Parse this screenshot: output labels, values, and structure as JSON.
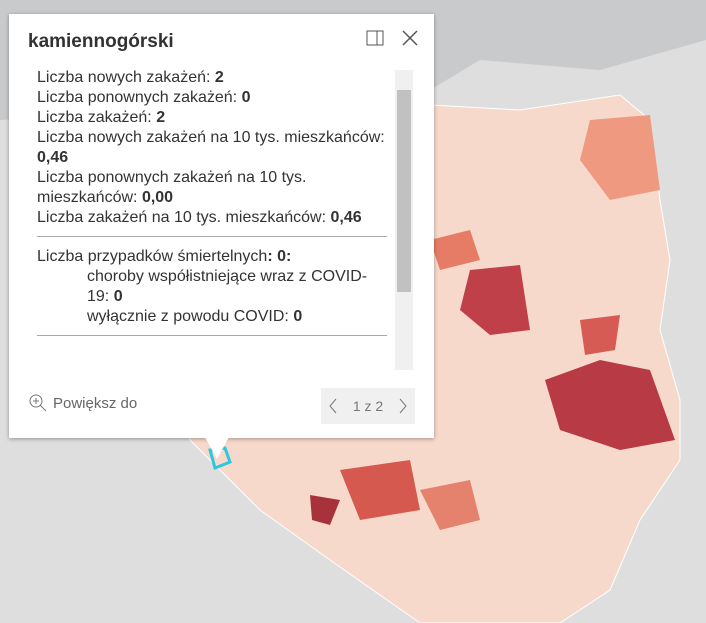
{
  "popup": {
    "title": "kamiennogórski",
    "fields": [
      {
        "label": "Liczba nowych zakażeń:",
        "value": "2"
      },
      {
        "label": "Liczba ponownych zakażeń:",
        "value": "0"
      },
      {
        "label": "Liczba zakażeń:",
        "value": "2"
      },
      {
        "label": "Liczba nowych zakażeń na 10 tys. mieszkańców:",
        "value": "0,46"
      },
      {
        "label": "Liczba ponownych zakażeń na 10 tys. mieszkańców:",
        "value": "0,00"
      },
      {
        "label": "Liczba zakażeń na 10 tys. mieszkańców:",
        "value": "0,46"
      }
    ],
    "deaths": {
      "label": "Liczba przypadków śmiertelnych",
      "value": ": 0:",
      "items": [
        {
          "label": "choroby współistniejące wraz z COVID-19:",
          "value": "0"
        },
        {
          "label": "wyłącznie z powodu COVID:",
          "value": "0"
        }
      ]
    },
    "zoom": "Powiększ do",
    "pager": "1 z 2"
  }
}
